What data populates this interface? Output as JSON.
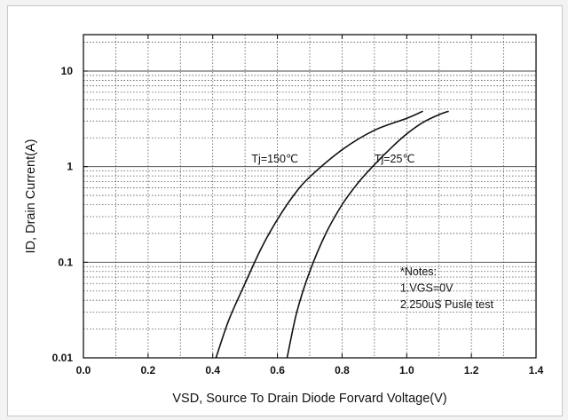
{
  "chart_data": {
    "type": "line",
    "title": "",
    "xlabel": "VSD, Source To Drain Diode Forvard Voltage(V)",
    "ylabel": "ID, Drain Current(A)",
    "xlim": [
      0.0,
      1.4
    ],
    "ylim": [
      0.01,
      20
    ],
    "y_scale": "log",
    "grid": true,
    "x_ticks": [
      "0.0",
      "0.2",
      "0.4",
      "0.6",
      "0.8",
      "1.0",
      "1.2",
      "1.4"
    ],
    "y_ticks": [
      "0.01",
      "0.1",
      "1",
      "10"
    ],
    "series": [
      {
        "name": "Tj=150℃",
        "x": [
          0.41,
          0.45,
          0.5,
          0.55,
          0.6,
          0.65,
          0.7,
          0.8,
          0.9,
          1.0,
          1.05
        ],
        "y": [
          0.01,
          0.025,
          0.06,
          0.14,
          0.28,
          0.5,
          0.78,
          1.5,
          2.4,
          3.2,
          3.8
        ]
      },
      {
        "name": "Tj=25℃",
        "x": [
          0.63,
          0.66,
          0.7,
          0.75,
          0.8,
          0.85,
          0.9,
          0.95,
          1.0,
          1.05,
          1.1,
          1.13
        ],
        "y": [
          0.01,
          0.03,
          0.08,
          0.2,
          0.4,
          0.68,
          1.05,
          1.55,
          2.2,
          2.9,
          3.5,
          3.8
        ]
      }
    ],
    "series_labels": [
      {
        "text": "Tj=150℃",
        "x": 0.52,
        "y": 1.1
      },
      {
        "text": "Tj=25℃",
        "x": 0.9,
        "y": 1.1
      }
    ],
    "notes": [
      "*Notes:",
      "1.VGS=0V",
      "2.250uS Pusle test"
    ],
    "colors": {
      "line": "#111111",
      "grid": "#555555",
      "axis": "#000000"
    }
  }
}
